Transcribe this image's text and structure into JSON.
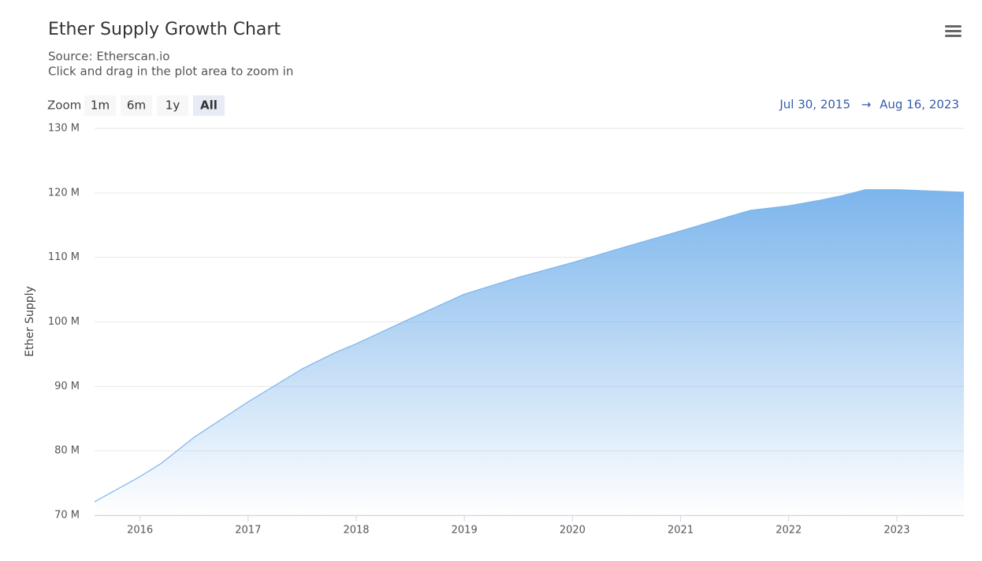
{
  "chart_data": {
    "type": "area",
    "title": "Ether Supply Growth Chart",
    "subtitle": [
      "Source: Etherscan.io",
      "Click and drag in the plot area to zoom in"
    ],
    "zoom_label": "Zoom",
    "zoom_buttons": [
      "1m",
      "6m",
      "1y",
      "All"
    ],
    "range_from": "Jul 30, 2015",
    "range_arrow": "→",
    "range_to": "Aug 16, 2023",
    "y_label": "Ether Supply",
    "color": "#7cb5ec",
    "grid": true,
    "x": [
      2015.58,
      2016.0,
      2016.2,
      2016.5,
      2017.0,
      2017.5,
      2017.8,
      2018.0,
      2018.5,
      2019.0,
      2019.5,
      2020.0,
      2020.5,
      2021.0,
      2021.5,
      2021.65,
      2022.0,
      2022.3,
      2022.5,
      2022.71,
      2023.0,
      2023.3,
      2023.62
    ],
    "series": [
      {
        "name": "Ether Supply",
        "color": "#7cb5ec",
        "values": [
          72.1,
          76.0,
          78.1,
          82.1,
          87.6,
          92.7,
          95.2,
          96.6,
          100.5,
          104.3,
          106.9,
          109.2,
          111.7,
          114.1,
          116.6,
          117.3,
          118.0,
          118.9,
          119.6,
          120.5,
          120.5,
          120.3,
          120.1
        ]
      }
    ],
    "xlim": [
      2015.58,
      2023.62
    ],
    "xticks": [
      2016,
      2017,
      2018,
      2019,
      2020,
      2021,
      2022,
      2023
    ],
    "ylim": [
      70,
      130
    ],
    "yticks": [
      {
        "value": 70,
        "label": "70 M"
      },
      {
        "value": 80,
        "label": "80 M"
      },
      {
        "value": 90,
        "label": "90 M"
      },
      {
        "value": 100,
        "label": "100 M"
      },
      {
        "value": 110,
        "label": "110 M"
      },
      {
        "value": 120,
        "label": "120 M"
      },
      {
        "value": 130,
        "label": "130 M"
      }
    ]
  }
}
